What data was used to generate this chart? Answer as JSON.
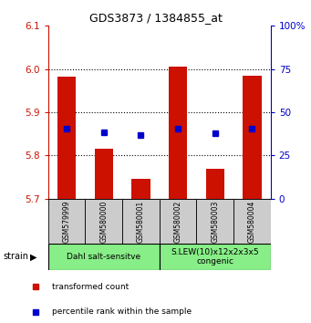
{
  "title": "GDS3873 / 1384855_at",
  "samples": [
    "GSM579999",
    "GSM580000",
    "GSM580001",
    "GSM580002",
    "GSM580003",
    "GSM580004"
  ],
  "bar_tops": [
    5.982,
    5.815,
    5.745,
    6.005,
    5.77,
    5.985
  ],
  "bar_base": 5.7,
  "percentile_values": [
    5.862,
    5.853,
    5.848,
    5.863,
    5.852,
    5.862
  ],
  "ylim_left": [
    5.7,
    6.1
  ],
  "ylim_right": [
    0,
    100
  ],
  "yticks_left": [
    5.7,
    5.8,
    5.9,
    6.0,
    6.1
  ],
  "yticks_right": [
    0,
    25,
    50,
    75,
    100
  ],
  "ytick_labels_right": [
    "0",
    "25",
    "50",
    "75",
    "100%"
  ],
  "bar_color": "#CC1100",
  "marker_color": "#0000CC",
  "groups": [
    {
      "label": "Dahl salt-sensitve",
      "start": 0,
      "end": 3,
      "color": "#88EE88"
    },
    {
      "label": "S.LEW(10)x12x2x3x5\ncongenic",
      "start": 3,
      "end": 6,
      "color": "#88EE88"
    }
  ],
  "strain_label": "strain",
  "legend_items": [
    {
      "color": "#CC1100",
      "label": "transformed count"
    },
    {
      "color": "#0000CC",
      "label": "percentile rank within the sample"
    }
  ],
  "grid_lines": [
    5.8,
    5.9,
    6.0
  ],
  "bar_width": 0.5
}
